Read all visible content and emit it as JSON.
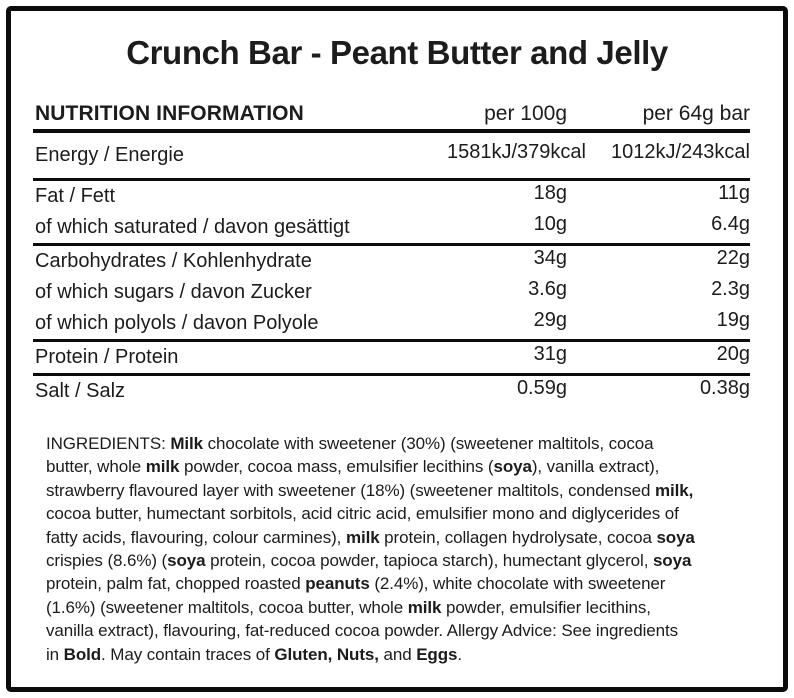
{
  "title": "Crunch Bar - Peant Butter and Jelly",
  "table": {
    "header": {
      "label": "NUTRITION INFORMATION",
      "col1": "per 100g",
      "col2": "per 64g bar"
    },
    "groups": [
      {
        "tall": true,
        "rows": [
          {
            "label": "Energy / Energie",
            "per100": "1581kJ/379kcal",
            "per64": "1012kJ/243kcal"
          }
        ]
      },
      {
        "rows": [
          {
            "label": "Fat / Fett",
            "per100": "18g",
            "per64": "11g"
          },
          {
            "label": "of which saturated / davon gesättigt",
            "per100": "10g",
            "per64": "6.4g"
          }
        ]
      },
      {
        "rows": [
          {
            "label": "Carbohydrates / Kohlenhydrate",
            "per100": "34g",
            "per64": "22g"
          },
          {
            "label": "of which sugars / davon Zucker",
            "per100": "3.6g",
            "per64": "2.3g"
          },
          {
            "label": "of which polyols / davon Polyole",
            "per100": "29g",
            "per64": "19g"
          }
        ]
      },
      {
        "rows": [
          {
            "label": "Protein / Protein",
            "per100": "31g",
            "per64": "20g"
          }
        ]
      },
      {
        "rows": [
          {
            "label": "Salt / Salz",
            "per100": "0.59g",
            "per64": "0.38g"
          }
        ]
      }
    ]
  },
  "ingredients": {
    "segments": [
      {
        "t": "INGREDIENTS: "
      },
      {
        "t": "Milk",
        "b": true
      },
      {
        "t": " chocolate with sweetener (30%) (sweetener maltitols, cocoa"
      },
      {
        "br": true
      },
      {
        "t": "butter, whole "
      },
      {
        "t": "milk",
        "b": true
      },
      {
        "t": " powder, cocoa mass, emulsifier lecithins ("
      },
      {
        "t": "soya",
        "b": true
      },
      {
        "t": "), vanilla extract),"
      },
      {
        "br": true
      },
      {
        "t": "strawberry flavoured layer with sweetener (18%) (sweetener maltitols, condensed "
      },
      {
        "t": "milk,",
        "b": true
      },
      {
        "br": true
      },
      {
        "t": "cocoa butter, humectant sorbitols, acid citric acid, emulsifier mono and diglycerides of"
      },
      {
        "br": true
      },
      {
        "t": "fatty acids, flavouring, colour carmines), "
      },
      {
        "t": "milk",
        "b": true
      },
      {
        "t": " protein, collagen hydrolysate, cocoa "
      },
      {
        "t": "soya",
        "b": true
      },
      {
        "br": true
      },
      {
        "t": "crispies (8.6%) ("
      },
      {
        "t": "soya",
        "b": true
      },
      {
        "t": " protein, cocoa powder, tapioca starch), humectant glycerol, "
      },
      {
        "t": "soya",
        "b": true
      },
      {
        "br": true
      },
      {
        "t": "protein, palm fat, chopped roasted "
      },
      {
        "t": "peanuts",
        "b": true
      },
      {
        "t": " (2.4%), white chocolate with sweetener"
      },
      {
        "br": true
      },
      {
        "t": "(1.6%) (sweetener maltitols, cocoa butter, whole "
      },
      {
        "t": "milk",
        "b": true
      },
      {
        "t": " powder, emulsifier lecithins,"
      },
      {
        "br": true
      },
      {
        "t": "vanilla extract), flavouring, fat-reduced cocoa powder. Allergy Advice: See ingredients"
      },
      {
        "br": true
      },
      {
        "t": "in "
      },
      {
        "t": "Bold",
        "b": true
      },
      {
        "t": ". May contain traces of "
      },
      {
        "t": "Gluten, Nuts,",
        "b": true
      },
      {
        "t": " and "
      },
      {
        "t": "Eggs",
        "b": true
      },
      {
        "t": "."
      }
    ]
  },
  "colors": {
    "text": "#1c1c1c",
    "border": "#0b0b0b",
    "background": "#ffffff"
  }
}
